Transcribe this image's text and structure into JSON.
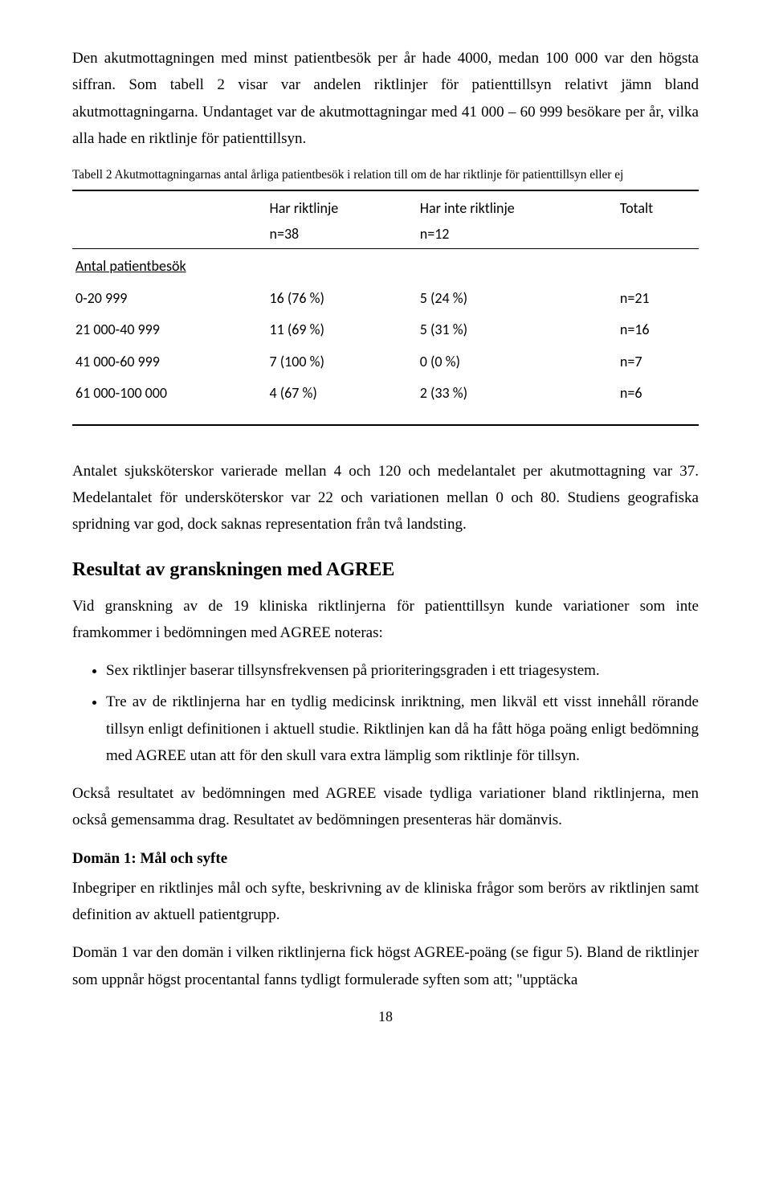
{
  "para1": "Den akutmottagningen med minst patientbesök per år hade 4000, medan 100 000 var den högsta siffran. Som tabell 2 visar var andelen riktlinjer för patienttillsyn relativt jämn bland akutmottagningarna. Undantaget var de akutmottagningar med 41 000 – 60 999 besökare per år, vilka alla hade en riktlinje för patienttillsyn.",
  "table": {
    "caption": "Tabell 2 Akutmottagningarnas antal årliga patientbesök i relation till om de har riktlinje för patienttillsyn eller ej",
    "header": {
      "col1": "",
      "col2a": "Har riktlinje",
      "col2b": "n=38",
      "col3a": "Har inte riktlinje",
      "col3b": "n=12",
      "col4": "Totalt"
    },
    "section_label": "Antal patientbesök",
    "rows": [
      {
        "range": "0-20 999",
        "with": "16 (76 %)",
        "without": "5  (24 %)",
        "total": "n=21"
      },
      {
        "range": "21 000-40 999",
        "with": "11 (69 %)",
        "without": "5  (31 %)",
        "total": "n=16"
      },
      {
        "range": "41 000-60 999",
        "with": "7 (100 %)",
        "without": "0   (0 %)",
        "total": "n=7"
      },
      {
        "range": "61 000-100 000",
        "with": "4  (67 %)",
        "without": "2  (33 %)",
        "total": "n=6"
      }
    ]
  },
  "para2": "Antalet sjuksköterskor varierade mellan 4 och 120 och medelantalet per akutmottagning var 37. Medelantalet för undersköterskor var 22 och variationen mellan 0 och 80. Studiens geografiska spridning var god, dock saknas representation från två landsting.",
  "heading_results": "Resultat av granskningen med AGREE",
  "para3": "Vid granskning av de 19 kliniska riktlinjerna för patienttillsyn kunde variationer som inte framkommer i bedömningen med AGREE noteras:",
  "bullets": [
    "Sex riktlinjer baserar tillsynsfrekvensen på prioriteringsgraden i ett triagesystem.",
    "Tre av de riktlinjerna har en tydlig medicinsk inriktning, men likväl ett visst innehåll rörande tillsyn enligt definitionen i aktuell studie. Riktlinjen kan då ha fått höga poäng enligt bedömning med AGREE utan att för den skull vara extra lämplig som riktlinje för tillsyn."
  ],
  "para4": "Också resultatet av bedömningen med AGREE visade tydliga variationer bland riktlinjerna, men också gemensamma drag. Resultatet av bedömningen presenteras här domänvis.",
  "domain1_title": "Domän 1: Mål och syfte",
  "para5": "Inbegriper en riktlinjes mål och syfte, beskrivning av de kliniska frågor som berörs av riktlinjen samt definition av aktuell patientgrupp.",
  "para6": "Domän 1 var den domän i vilken riktlinjerna fick högst AGREE-poäng (se figur 5). Bland de riktlinjer som uppnår högst procentantal fanns tydligt formulerade syften som att; \"upptäcka",
  "page_number": "18"
}
